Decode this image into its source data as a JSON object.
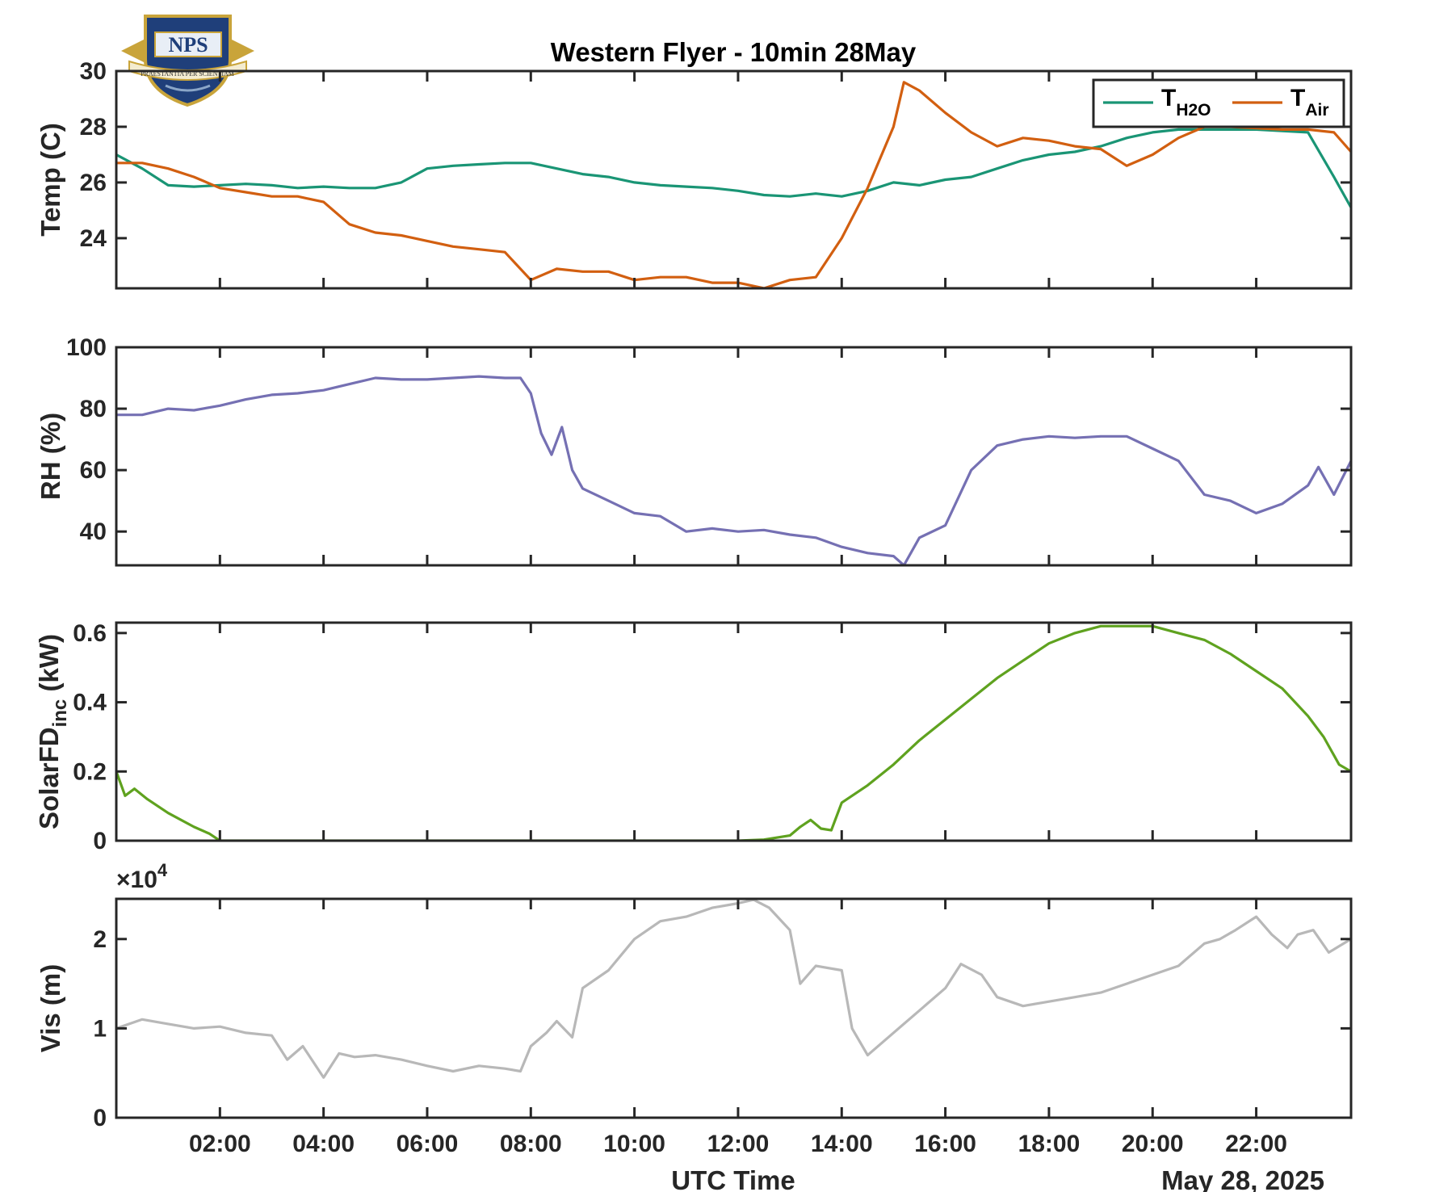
{
  "figure": {
    "title": "Western Flyer - 10min 28May",
    "xlabel": "UTC Time",
    "date_label": "May 28, 2025",
    "x_ticks": [
      "02:00",
      "04:00",
      "06:00",
      "08:00",
      "10:00",
      "12:00",
      "14:00",
      "16:00",
      "18:00",
      "20:00",
      "22:00"
    ],
    "logo": {
      "name": "NPS",
      "motto": "PRAESTANTIA PER SCIENTIAM",
      "colors": [
        "#1f3f7a",
        "#c9a43a"
      ]
    }
  },
  "chart_data": [
    {
      "id": "temp",
      "type": "line",
      "ylabel": "Temp (C)",
      "ylim": [
        22.2,
        30
      ],
      "yticks": [
        24,
        26,
        28,
        30
      ],
      "xlim": [
        0,
        23.83
      ],
      "legend": {
        "placement": "top-right",
        "entries": [
          {
            "base": "T",
            "sub": "H2O"
          },
          {
            "base": "T",
            "sub": "Air"
          }
        ]
      },
      "series": [
        {
          "name": "T_H2O",
          "color": "#1a9575",
          "x": [
            0,
            0.5,
            1,
            1.5,
            2,
            2.5,
            3,
            3.5,
            4,
            4.5,
            5,
            5.5,
            6,
            6.5,
            7,
            7.5,
            8,
            8.5,
            9,
            9.5,
            10,
            10.5,
            11,
            11.5,
            12,
            12.5,
            13,
            13.5,
            14,
            14.5,
            15,
            15.5,
            16,
            16.5,
            17,
            17.5,
            18,
            18.5,
            19,
            19.5,
            20,
            20.5,
            21,
            21.5,
            22,
            22.5,
            23,
            23.5,
            23.83
          ],
          "values": [
            27.0,
            26.5,
            25.9,
            25.85,
            25.9,
            25.95,
            25.9,
            25.8,
            25.85,
            25.8,
            25.8,
            26.0,
            26.5,
            26.6,
            26.65,
            26.7,
            26.7,
            26.5,
            26.3,
            26.2,
            26.0,
            25.9,
            25.85,
            25.8,
            25.7,
            25.55,
            25.5,
            25.6,
            25.5,
            25.7,
            26.0,
            25.9,
            26.1,
            26.2,
            26.5,
            26.8,
            27.0,
            27.1,
            27.3,
            27.6,
            27.8,
            27.9,
            27.9,
            27.9,
            27.9,
            27.85,
            27.8,
            26.2,
            25.1
          ]
        },
        {
          "name": "T_Air",
          "color": "#d25f10",
          "x": [
            0,
            0.5,
            1,
            1.5,
            2,
            2.5,
            3,
            3.5,
            4,
            4.5,
            5,
            5.5,
            6,
            6.5,
            7,
            7.5,
            8,
            8.5,
            9,
            9.5,
            10,
            10.5,
            11,
            11.5,
            12,
            12.5,
            13,
            13.5,
            14,
            14.5,
            15,
            15.2,
            15.5,
            16,
            16.5,
            17,
            17.5,
            18,
            18.5,
            19,
            19.5,
            20,
            20.5,
            21,
            21.5,
            22,
            22.5,
            23,
            23.5,
            23.83
          ],
          "values": [
            26.7,
            26.7,
            26.5,
            26.2,
            25.8,
            25.65,
            25.5,
            25.5,
            25.3,
            24.5,
            24.2,
            24.1,
            23.9,
            23.7,
            23.6,
            23.5,
            22.5,
            22.9,
            22.8,
            22.8,
            22.5,
            22.6,
            22.6,
            22.4,
            22.4,
            22.2,
            22.5,
            22.6,
            24.0,
            25.8,
            28.0,
            29.6,
            29.3,
            28.5,
            27.8,
            27.3,
            27.6,
            27.5,
            27.3,
            27.2,
            26.6,
            27.0,
            27.6,
            28.0,
            28.0,
            27.95,
            27.9,
            27.9,
            27.8,
            27.1
          ]
        }
      ]
    },
    {
      "id": "rh",
      "type": "line",
      "ylabel": "RH (%)",
      "ylim": [
        29,
        100
      ],
      "yticks": [
        40,
        60,
        80,
        100
      ],
      "xlim": [
        0,
        23.83
      ],
      "series": [
        {
          "name": "",
          "color": "#7570b3",
          "x": [
            0,
            0.5,
            1,
            1.5,
            2,
            2.5,
            3,
            3.5,
            4,
            4.5,
            5,
            5.5,
            6,
            6.5,
            7,
            7.5,
            7.8,
            8.0,
            8.2,
            8.4,
            8.6,
            8.8,
            9,
            9.5,
            10,
            10.5,
            11,
            11.5,
            12,
            12.5,
            13,
            13.5,
            14,
            14.5,
            15,
            15.2,
            15.5,
            16,
            16.5,
            17,
            17.5,
            18,
            18.5,
            19,
            19.5,
            20,
            20.5,
            21,
            21.5,
            22,
            22.5,
            23,
            23.2,
            23.5,
            23.83
          ],
          "values": [
            78,
            78,
            80,
            79.5,
            81,
            83,
            84.5,
            85,
            86,
            88,
            90,
            89.5,
            89.5,
            90,
            90.5,
            90,
            90,
            85,
            72,
            65,
            74,
            60,
            54,
            50,
            46,
            45,
            40,
            41,
            40,
            40.5,
            39,
            38,
            35,
            33,
            32,
            29,
            38,
            42,
            60,
            68,
            70,
            71,
            70.5,
            71,
            71,
            67,
            63,
            52,
            50,
            46,
            49,
            55,
            61,
            52,
            63
          ]
        }
      ]
    },
    {
      "id": "solar",
      "type": "line",
      "ylabel": "SolarFD",
      "ylabel_sub": "inc",
      "ylabel_unit": "(kW)",
      "ylim": [
        0,
        0.63
      ],
      "yticks": [
        "0",
        "0.2",
        "0.4",
        "0.6"
      ],
      "ytick_values": [
        0,
        0.2,
        0.4,
        0.6
      ],
      "xlim": [
        0,
        23.83
      ],
      "series": [
        {
          "name": "",
          "color": "#5fa21f",
          "x": [
            0,
            0.17,
            0.35,
            0.6,
            1,
            1.5,
            1.8,
            2.0,
            2.5,
            4,
            6,
            8,
            10,
            12,
            12.5,
            13,
            13.2,
            13.4,
            13.6,
            13.8,
            14.0,
            14.5,
            15,
            15.5,
            16,
            16.5,
            17,
            17.5,
            18,
            18.5,
            19,
            19.5,
            20,
            20.5,
            21,
            21.5,
            22,
            22.5,
            23,
            23.3,
            23.6,
            23.83
          ],
          "values": [
            0.2,
            0.13,
            0.15,
            0.12,
            0.08,
            0.04,
            0.02,
            0.0,
            0.0,
            0.0,
            0.0,
            0.0,
            0.0,
            0.0,
            0.003,
            0.015,
            0.04,
            0.06,
            0.035,
            0.03,
            0.11,
            0.16,
            0.22,
            0.29,
            0.35,
            0.41,
            0.47,
            0.52,
            0.57,
            0.6,
            0.62,
            0.62,
            0.62,
            0.6,
            0.58,
            0.54,
            0.49,
            0.44,
            0.36,
            0.3,
            0.22,
            0.2
          ]
        }
      ]
    },
    {
      "id": "vis",
      "type": "line",
      "ylabel": "Vis (m)",
      "ylim": [
        0,
        24500
      ],
      "yticks": [
        "0",
        "1",
        "2"
      ],
      "ytick_values": [
        0,
        10000,
        20000
      ],
      "exponent_label": "×10",
      "exponent_power": "4",
      "xlim": [
        0,
        23.83
      ],
      "series": [
        {
          "name": "",
          "color": "#b8b8b8",
          "x": [
            0,
            0.5,
            1,
            1.5,
            2,
            2.5,
            3,
            3.3,
            3.6,
            4,
            4.3,
            4.6,
            5,
            5.5,
            6,
            6.5,
            7,
            7.5,
            7.8,
            8,
            8.3,
            8.5,
            8.8,
            9,
            9.5,
            10,
            10.5,
            11,
            11.5,
            12,
            12.3,
            12.6,
            13,
            13.2,
            13.5,
            14,
            14.2,
            14.5,
            15,
            15.5,
            16,
            16.3,
            16.7,
            17,
            17.5,
            18,
            18.5,
            19,
            19.5,
            20,
            20.5,
            21,
            21.3,
            21.6,
            22,
            22.3,
            22.6,
            22.8,
            23.1,
            23.4,
            23.83
          ],
          "values": [
            10000,
            11000,
            10500,
            10000,
            10200,
            9500,
            9200,
            6500,
            8000,
            4500,
            7200,
            6800,
            7000,
            6500,
            5800,
            5200,
            5800,
            5500,
            5200,
            8000,
            9500,
            10800,
            9000,
            14500,
            16500,
            20000,
            22000,
            22500,
            23500,
            24000,
            24400,
            23500,
            21000,
            15000,
            17000,
            16500,
            10000,
            7000,
            9500,
            12000,
            14500,
            17200,
            16000,
            13500,
            12500,
            13000,
            13500,
            14000,
            15000,
            16000,
            17000,
            19500,
            20000,
            21000,
            22500,
            20500,
            19000,
            20500,
            21000,
            18500,
            20000
          ]
        }
      ]
    }
  ]
}
